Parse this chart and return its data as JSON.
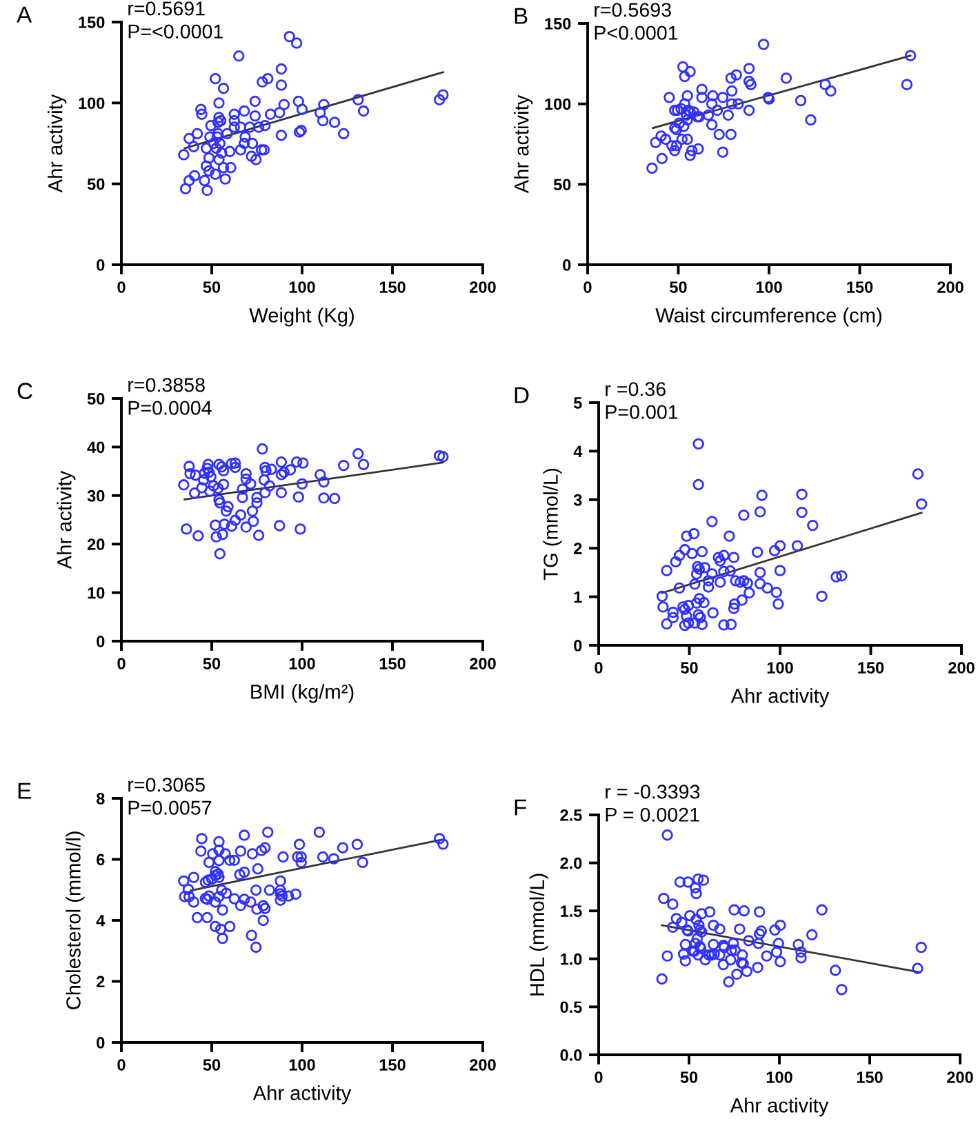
{
  "chart_data": [
    {
      "type": "scatter",
      "title": "A",
      "xlabel": "Weight (Kg)",
      "ylabel": "Ahr activity",
      "annotations": [
        "r=0.5691",
        "P=<0.0001"
      ],
      "xlim": [
        0,
        200
      ],
      "ylim": [
        0,
        150
      ],
      "xticks": [
        0,
        50,
        100,
        150,
        200
      ],
      "yticks": [
        0,
        50,
        100,
        150
      ],
      "series": [
        {
          "type": "scatter",
          "marker": "circle",
          "color": "#3030ff",
          "x": [
            65,
            93,
            97,
            52,
            56.5,
            78,
            81,
            88.5,
            88.5,
            54,
            74,
            90,
            98,
            100,
            44,
            44.5,
            62.5,
            68,
            74,
            82.5,
            87.5,
            112,
            110,
            131,
            134,
            111.5,
            118,
            123,
            98.5,
            99.5,
            88.5,
            54,
            55,
            53.5,
            49.5,
            62.5,
            62.5,
            66,
            71,
            76,
            79.5,
            42,
            37.5,
            40,
            34.5,
            53.5,
            58.5,
            49,
            53,
            54.5,
            51,
            47,
            52.5,
            68.5,
            68,
            72.5,
            66,
            60,
            55.5,
            77.5,
            79,
            72,
            74.5,
            48.5,
            54,
            47,
            56.5,
            60.5,
            48.5,
            52,
            40.5,
            37.5,
            46,
            57.5,
            35.5,
            47.5,
            176,
            178
          ],
          "values": [
            129,
            141,
            137,
            115,
            109,
            113,
            115,
            121,
            111,
            100,
            101,
            99,
            101,
            96,
            96,
            93,
            93,
            95,
            92,
            93,
            94,
            99,
            94,
            102,
            95,
            89,
            88,
            81,
            82,
            83,
            80,
            91,
            89,
            88,
            86,
            89,
            85,
            85,
            85,
            85,
            86,
            81,
            78,
            73,
            68,
            81,
            81,
            79,
            79,
            75,
            75,
            72,
            72,
            79,
            75,
            75,
            71,
            70,
            69,
            71,
            71,
            67,
            65,
            66,
            65,
            61,
            60,
            60,
            58,
            56,
            55,
            52,
            52,
            53,
            47,
            46,
            102,
            105
          ]
        },
        {
          "type": "line",
          "marker": "none",
          "color": "#333333",
          "x": [
            35,
            178
          ],
          "values": [
            72,
            119
          ]
        }
      ]
    },
    {
      "type": "scatter",
      "title": "B",
      "xlabel": "Waist circumference (cm)",
      "ylabel": "Ahr activity",
      "annotations": [
        "r=0.5693",
        "P<0.0001"
      ],
      "xlim": [
        0,
        200
      ],
      "ylim": [
        0,
        150
      ],
      "xticks": [
        0,
        50,
        100,
        150,
        200
      ],
      "yticks": [
        0,
        50,
        100,
        150
      ],
      "series": [
        {
          "type": "scatter",
          "marker": "circle",
          "color": "#3030ff",
          "x": [
            97,
            178,
            176,
            131,
            134,
            117.5,
            123,
            109.5,
            99.5,
            100,
            89,
            89,
            90,
            89,
            82,
            79,
            79.5,
            79.5,
            83,
            77.5,
            79,
            74.5,
            72.5,
            74.5,
            71.5,
            69,
            68.5,
            66.5,
            68.5,
            63,
            63,
            61.5,
            58.5,
            60.5,
            61,
            57.5,
            56.5,
            52.5,
            56.5,
            53.5,
            55,
            53.5,
            55.5,
            56.5,
            54.5,
            55,
            53,
            50.5,
            49.5,
            48,
            51.5,
            45,
            48,
            49,
            52,
            55,
            43,
            40.5,
            37.5,
            46.5,
            49,
            48,
            41,
            35.5
          ],
          "values": [
            137,
            130,
            112,
            112,
            108,
            102,
            90,
            116,
            104,
            103,
            122,
            114,
            112,
            96,
            118,
            116,
            108,
            100,
            100,
            93,
            81,
            70,
            81,
            104,
            96,
            105,
            100,
            93,
            87,
            109,
            104,
            92,
            95,
            92,
            72,
            71,
            68,
            123,
            120,
            117,
            105,
            100,
            96,
            95,
            93,
            90,
            86,
            88,
            96,
            96,
            97,
            104,
            85,
            84,
            78,
            78,
            78,
            80,
            76,
            74,
            74,
            71,
            66,
            60
          ]
        },
        {
          "type": "line",
          "marker": "none",
          "color": "#333333",
          "x": [
            36,
            178
          ],
          "values": [
            85,
            130
          ]
        }
      ]
    },
    {
      "type": "scatter",
      "title": "C",
      "xlabel": "BMI (kg/m²)",
      "ylabel": "Ahr activity",
      "annotations": [
        "r=0.3858",
        "P=0.0004"
      ],
      "xlim": [
        0,
        200
      ],
      "ylim": [
        0,
        50
      ],
      "xticks": [
        0,
        50,
        100,
        150,
        200
      ],
      "yticks": [
        0,
        10,
        20,
        30,
        40,
        50
      ],
      "series": [
        {
          "type": "scatter",
          "marker": "circle",
          "color": "#3030ff",
          "x": [
            78,
            131,
            134,
            123,
            176,
            178,
            110,
            112,
            112,
            118,
            100.5,
            97,
            100,
            98,
            99,
            88.5,
            93.5,
            90,
            88.5,
            88.5,
            87.5,
            79.5,
            80,
            83,
            79,
            82,
            79.5,
            75,
            75,
            72.5,
            73,
            76,
            69,
            69,
            71.5,
            67,
            67,
            66,
            63,
            69,
            61,
            63,
            61,
            63,
            56.5,
            54,
            55.5,
            56.5,
            53.5,
            59,
            58,
            57,
            56,
            52.5,
            52,
            54.5,
            54,
            54.5,
            51,
            48,
            47.5,
            48.5,
            46,
            49.5,
            45.5,
            44.5,
            49,
            37.5,
            38,
            41,
            40.5,
            34.5,
            36,
            42.5
          ],
          "values": [
            39.6,
            38.6,
            36.4,
            36.2,
            38.2,
            38,
            34.3,
            32.8,
            29.5,
            29.4,
            36.7,
            36.9,
            32.4,
            29.7,
            23.1,
            36.9,
            35.3,
            34.8,
            34.3,
            30.6,
            23.8,
            35.8,
            35.1,
            35.4,
            33.2,
            32,
            30.6,
            29.6,
            28.5,
            26.8,
            24.7,
            21.8,
            34.5,
            33.4,
            32.4,
            31.3,
            29.6,
            26,
            24.9,
            23.5,
            23.7,
            36.7,
            36.6,
            35.8,
            35.1,
            36.4,
            35.9,
            32.3,
            31.5,
            27.7,
            26.8,
            24.1,
            22,
            21.5,
            23.9,
            18,
            29.1,
            28.5,
            32,
            36.4,
            35.6,
            34.8,
            34.6,
            33.9,
            33.2,
            31.6,
            30.9,
            36,
            34.5,
            34.2,
            30.5,
            32.2,
            23.1,
            21.7
          ]
        },
        {
          "type": "line",
          "marker": "none",
          "color": "#333333",
          "x": [
            35,
            178
          ],
          "values": [
            29.2,
            36.8
          ]
        }
      ]
    },
    {
      "type": "scatter",
      "title": "D",
      "xlabel": "Ahr activity",
      "ylabel": "TG (mmol/L)",
      "annotations": [
        "r =0.36",
        "P=0.001"
      ],
      "xlim": [
        0,
        200
      ],
      "ylim": [
        0,
        5
      ],
      "xticks": [
        0,
        50,
        100,
        150,
        200
      ],
      "yticks": [
        0,
        1,
        2,
        3,
        4,
        5
      ],
      "series": [
        {
          "type": "scatter",
          "marker": "circle",
          "color": "#3030ff",
          "x": [
            55,
            55,
            176,
            178,
            112,
            112,
            90,
            89,
            80,
            118,
            62.5,
            52.5,
            48.5,
            72,
            109.5,
            100,
            97,
            87.5,
            47.5,
            57,
            51.5,
            44.5,
            42.5,
            37.5,
            66,
            67,
            69,
            74.5,
            58.5,
            54.5,
            55.5,
            54,
            62.5,
            69,
            72.5,
            89,
            100,
            60.5,
            60.5,
            53,
            67,
            75.5,
            78,
            80,
            82,
            89,
            93,
            44.5,
            83,
            98,
            99,
            123,
            131,
            134,
            35,
            35.5,
            41,
            41,
            37.5,
            46.5,
            47.5,
            49.5,
            54,
            55.5,
            58,
            55,
            56,
            48.5,
            63,
            75,
            74.5,
            79,
            47.5,
            49.5,
            53,
            57,
            69,
            73
          ],
          "values": [
            4.15,
            3.31,
            3.53,
            2.91,
            3.11,
            2.74,
            3.09,
            2.75,
            2.68,
            2.47,
            2.55,
            2.3,
            2.25,
            2.25,
            2.05,
            2.05,
            1.95,
            1.92,
            1.97,
            1.93,
            1.89,
            1.85,
            1.72,
            1.54,
            1.81,
            1.74,
            1.85,
            1.81,
            1.6,
            1.62,
            1.57,
            1.47,
            1.47,
            1.52,
            1.53,
            1.5,
            1.54,
            1.33,
            1.2,
            1.26,
            1.3,
            1.33,
            1.3,
            1.33,
            1.28,
            1.27,
            1.18,
            1.18,
            1.08,
            1.09,
            0.85,
            1.01,
            1.41,
            1.43,
            1.01,
            0.79,
            0.68,
            0.57,
            0.44,
            0.79,
            0.74,
            0.82,
            0.87,
            0.96,
            0.88,
            0.63,
            0.57,
            0.6,
            0.67,
            0.85,
            0.76,
            0.93,
            0.41,
            0.46,
            0.46,
            0.43,
            0.42,
            0.43
          ]
        },
        {
          "type": "line",
          "marker": "none",
          "color": "#333333",
          "x": [
            35,
            178
          ],
          "values": [
            1.08,
            2.73
          ]
        }
      ]
    },
    {
      "type": "scatter",
      "title": "E",
      "xlabel": "Ahr activity",
      "ylabel": "Cholesterol (mmol/l)",
      "annotations": [
        "r=0.3065",
        "P=0.0057"
      ],
      "xlim": [
        0,
        200
      ],
      "ylim": [
        0,
        8
      ],
      "xticks": [
        0,
        50,
        100,
        150,
        200
      ],
      "yticks": [
        0,
        2,
        4,
        6,
        8
      ],
      "series": [
        {
          "type": "scatter",
          "marker": "circle",
          "color": "#3030ff",
          "x": [
            44.5,
            44,
            54,
            54,
            50.5,
            57.5,
            68,
            81,
            66,
            72.5,
            77.5,
            79.5,
            109.5,
            98.5,
            122.5,
            130.5,
            133.5,
            111.5,
            117.5,
            97.5,
            99.5,
            99.5,
            89.5,
            176,
            178,
            48.5,
            54,
            60,
            62.5,
            52,
            53.5,
            52,
            54,
            65.5,
            68,
            75.5,
            50,
            48,
            46.5,
            40,
            34.5,
            37,
            35,
            37.5,
            40,
            46.5,
            47.5,
            48.5,
            54,
            55.5,
            58,
            52,
            62.5,
            68,
            66,
            71.5,
            74.5,
            82,
            88,
            88,
            88,
            89,
            88,
            92.5,
            96.5,
            75,
            78.5,
            79.5,
            56,
            42,
            47.5,
            78.5,
            52,
            55,
            60,
            56,
            72,
            74.5
          ],
          "values": [
            6.68,
            6.27,
            6.58,
            6.3,
            6.18,
            6.18,
            6.79,
            6.89,
            6.27,
            6.18,
            6.29,
            6.38,
            6.89,
            6.49,
            6.38,
            6.49,
            5.9,
            6.08,
            6.02,
            6.08,
            6.08,
            5.9,
            6.08,
            6.68,
            6.5,
            5.9,
            5.96,
            5.97,
            5.97,
            5.6,
            5.52,
            5.47,
            5.41,
            5.5,
            5.58,
            5.69,
            5.35,
            5.32,
            5.25,
            5.41,
            5.29,
            5.02,
            4.78,
            4.78,
            4.6,
            4.72,
            4.69,
            4.8,
            4.78,
            4.99,
            4.89,
            4.6,
            4.71,
            4.69,
            4.49,
            4.6,
            4.99,
            4.99,
            5.29,
            4.99,
            4.87,
            4.8,
            4.66,
            4.8,
            4.86,
            4.37,
            4.48,
            4.39,
            4.34,
            4.09,
            4.09,
            4,
            3.8,
            3.71,
            3.8,
            3.41,
            3.51,
            3.12
          ]
        },
        {
          "type": "line",
          "marker": "none",
          "color": "#333333",
          "x": [
            38.5,
            177
          ],
          "values": [
            4.98,
            6.64
          ]
        }
      ]
    },
    {
      "type": "scatter",
      "title": "F",
      "xlabel": "Ahr activity",
      "ylabel": "HDL (mmol/L)",
      "annotations": [
        "r = -0.3393",
        "P = 0.0021"
      ],
      "xlim": [
        0,
        200
      ],
      "ylim": [
        0,
        2.5
      ],
      "xticks": [
        0,
        50,
        100,
        150,
        200
      ],
      "yticks": [
        {
          "value": 0,
          "label": "0.0"
        },
        0.5,
        {
          "value": 1,
          "label": "1.0"
        },
        1.5,
        {
          "value": 2,
          "label": "2.0"
        },
        2.5
      ],
      "series": [
        {
          "type": "scatter",
          "marker": "circle",
          "color": "#3030ff",
          "x": [
            38,
            45,
            49.5,
            55,
            58,
            53.5,
            54,
            36,
            41,
            75,
            80.5,
            89,
            123.5,
            61.5,
            57,
            50.5,
            43,
            54,
            46,
            55.5,
            63.5,
            41,
            49,
            49.5,
            56,
            57,
            67,
            78,
            100.5,
            97.5,
            90,
            89,
            118,
            54.5,
            53.5,
            48,
            56,
            52,
            53,
            47,
            48,
            38,
            55,
            56.5,
            59,
            61,
            63.5,
            64,
            67,
            69,
            69.5,
            73.5,
            74.5,
            75.5,
            79.5,
            79,
            80,
            69,
            73,
            83,
            88.5,
            93,
            98.5,
            99.5,
            100.5,
            88,
            82,
            76.5,
            72,
            35,
            110.5,
            112,
            112,
            131,
            134.5,
            176.5,
            178.5,
            62.5
          ],
          "values": [
            2.29,
            1.8,
            1.8,
            1.83,
            1.82,
            1.74,
            1.68,
            1.63,
            1.57,
            1.51,
            1.5,
            1.49,
            1.51,
            1.49,
            1.47,
            1.45,
            1.42,
            1.41,
            1.38,
            1.35,
            1.35,
            1.33,
            1.3,
            1.29,
            1.3,
            1.28,
            1.31,
            1.31,
            1.35,
            1.3,
            1.29,
            1.26,
            1.25,
            1.21,
            1.16,
            1.15,
            1.13,
            1.08,
            1.08,
            1.05,
            0.98,
            1.03,
            1.04,
            1.11,
            0.99,
            1.04,
            1.15,
            1.05,
            1.04,
            1.14,
            1.12,
            1.09,
            1.16,
            1.09,
            1.04,
            0.96,
            0.95,
            0.94,
            0.99,
            1.19,
            1.16,
            1.03,
            1.07,
            1.16,
            0.97,
            0.91,
            0.87,
            0.84,
            0.76,
            0.79,
            1.15,
            1.07,
            1.01,
            0.88,
            0.68,
            0.9,
            1.12,
            1.04
          ]
        },
        {
          "type": "line",
          "marker": "none",
          "color": "#333333",
          "x": [
            35,
            178
          ],
          "values": [
            1.35,
            0.86
          ]
        }
      ]
    }
  ]
}
